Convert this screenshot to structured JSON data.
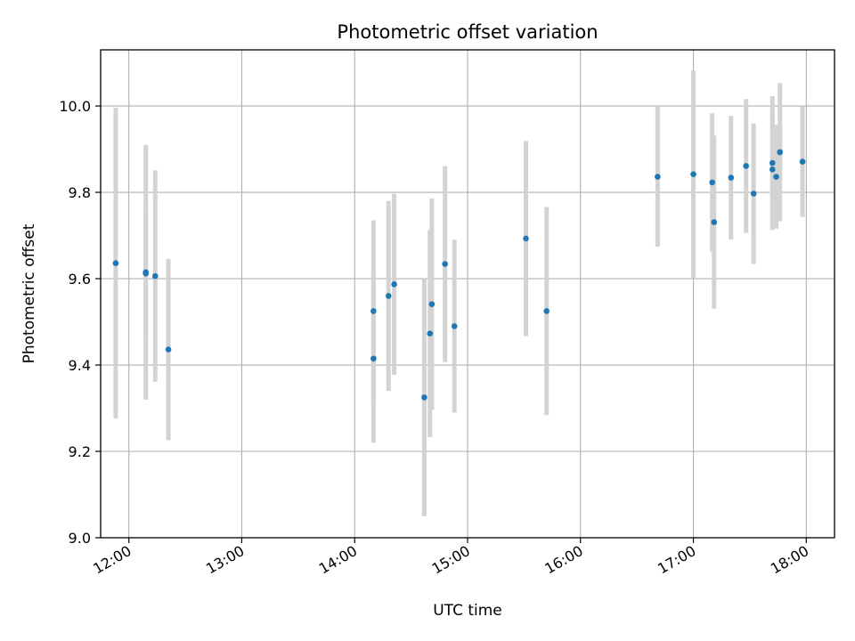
{
  "chart_data": {
    "type": "scatter",
    "title": "Photometric offset variation",
    "xlabel": "UTC time",
    "ylabel": "Photometric offset",
    "x_unit": "UTC hours",
    "xlim": [
      "11:45",
      "18:15"
    ],
    "ylim": [
      9.0,
      10.13
    ],
    "x_ticks": [
      "12:00",
      "13:00",
      "14:00",
      "15:00",
      "16:00",
      "17:00",
      "18:00"
    ],
    "y_ticks": [
      "9.0",
      "9.2",
      "9.4",
      "9.6",
      "9.8",
      "10.0"
    ],
    "grid": true,
    "colors": {
      "marker": "#1f77b4",
      "error_bar": "#d3d3d3",
      "grid": "#b0b0b0"
    },
    "points": [
      {
        "x": "11:53",
        "y": 9.636,
        "err": 0.36
      },
      {
        "x": "12:09",
        "y": 9.615,
        "err": 0.295
      },
      {
        "x": "12:09",
        "y": 9.612,
        "err": 0.15
      },
      {
        "x": "12:14",
        "y": 9.606,
        "err": 0.245
      },
      {
        "x": "12:21",
        "y": 9.436,
        "err": 0.21
      },
      {
        "x": "14:10",
        "y": 9.415,
        "err": 0.195
      },
      {
        "x": "14:10",
        "y": 9.525,
        "err": 0.21
      },
      {
        "x": "14:18",
        "y": 9.56,
        "err": 0.22
      },
      {
        "x": "14:21",
        "y": 9.587,
        "err": 0.21
      },
      {
        "x": "14:37",
        "y": 9.325,
        "err": 0.275
      },
      {
        "x": "14:40",
        "y": 9.473,
        "err": 0.24
      },
      {
        "x": "14:41",
        "y": 9.541,
        "err": 0.245
      },
      {
        "x": "14:48",
        "y": 9.634,
        "err": 0.227
      },
      {
        "x": "14:53",
        "y": 9.49,
        "err": 0.2
      },
      {
        "x": "15:31",
        "y": 9.693,
        "err": 0.226
      },
      {
        "x": "15:42",
        "y": 9.525,
        "err": 0.241
      },
      {
        "x": "16:41",
        "y": 9.836,
        "err": 0.162
      },
      {
        "x": "17:00",
        "y": 9.842,
        "err": 0.24
      },
      {
        "x": "17:10",
        "y": 9.823,
        "err": 0.16
      },
      {
        "x": "17:11",
        "y": 9.731,
        "err": 0.2
      },
      {
        "x": "17:20",
        "y": 9.834,
        "err": 0.143
      },
      {
        "x": "17:28",
        "y": 9.861,
        "err": 0.155
      },
      {
        "x": "17:32",
        "y": 9.797,
        "err": 0.163
      },
      {
        "x": "17:42",
        "y": 9.868,
        "err": 0.155
      },
      {
        "x": "17:42",
        "y": 9.853,
        "err": 0.14
      },
      {
        "x": "17:44",
        "y": 9.836,
        "err": 0.12
      },
      {
        "x": "17:46",
        "y": 9.893,
        "err": 0.16
      },
      {
        "x": "17:46",
        "y": 9.893,
        "err": 0.065
      },
      {
        "x": "17:58",
        "y": 9.871,
        "err": 0.128
      }
    ]
  }
}
